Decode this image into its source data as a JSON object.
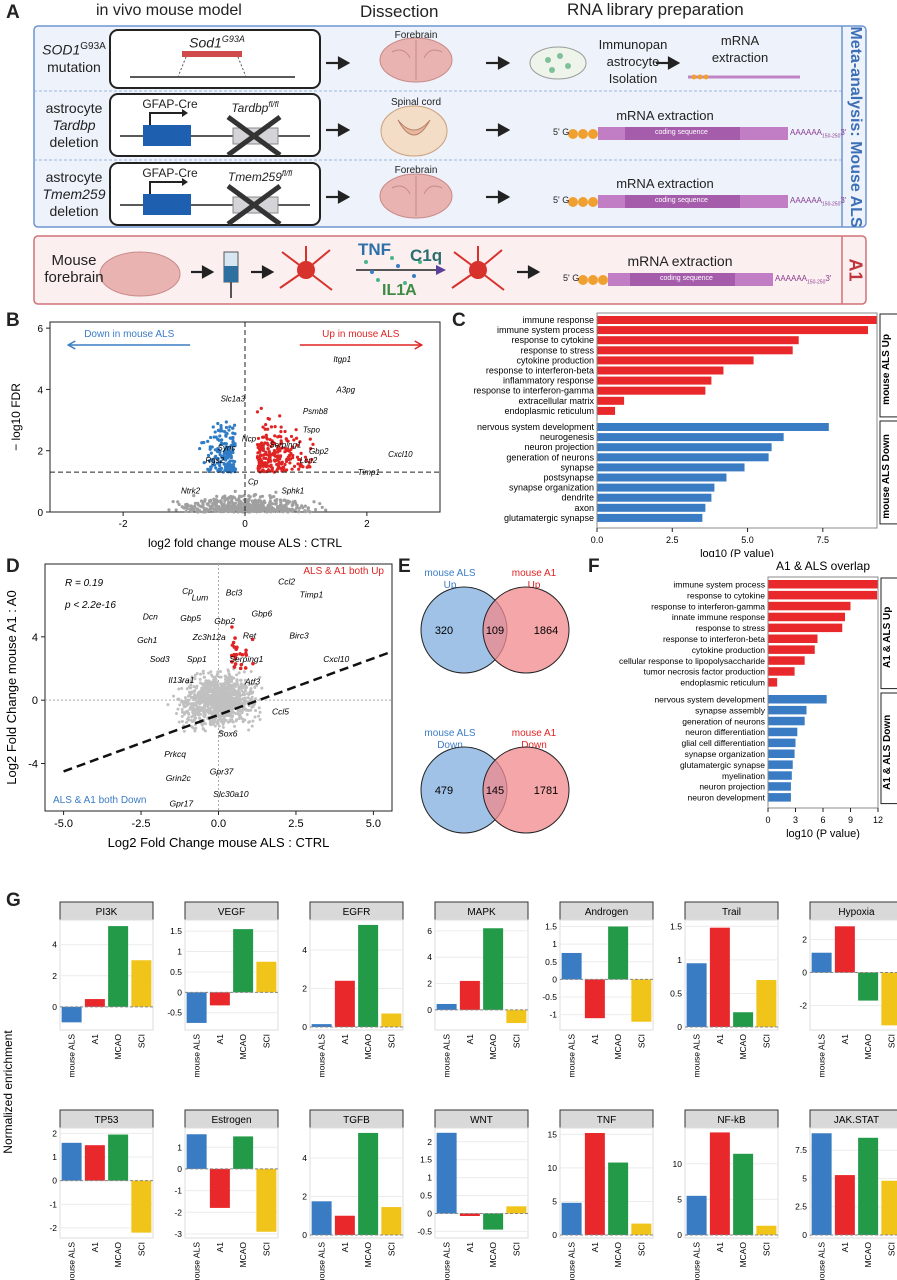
{
  "panelA": {
    "label": "A",
    "col_headers": [
      "in vivo mouse model",
      "Dissection",
      "RNA library preparation"
    ],
    "side_label_als": "Meta-analysis: Mouse ALS",
    "side_label_a1": "A1",
    "rows": [
      {
        "model": [
          "SOD1",
          "G93A",
          "mutation"
        ],
        "gene": "Sod1",
        "gene_sup": "G93A",
        "tissue": "Forebrain",
        "prep": [
          "Immunopan",
          "astrocyte",
          "Isolation"
        ],
        "prep2": [
          "mRNA",
          "extraction"
        ]
      },
      {
        "model": [
          "astrocyte",
          "Tardbp",
          "deletion"
        ],
        "cre": "GFAP-Cre",
        "gene": "Tardbp",
        "gene_sup": "fl/fl",
        "tissue": "Spinal cord",
        "prep2": [
          "mRNA extraction"
        ]
      },
      {
        "model": [
          "astrocyte",
          "Tmem259",
          "deletion"
        ],
        "cre": "GFAP-Cre",
        "gene": "Tmem259",
        "gene_sup": "fl/fl",
        "tissue": "Forebrain",
        "prep2": [
          "mRNA extraction"
        ]
      }
    ],
    "a1_row": {
      "model": [
        "Mouse",
        "forebrain"
      ],
      "cytokines": [
        "TNF",
        "C1q",
        "IL1A"
      ],
      "prep": "mRNA extraction"
    },
    "mrna": {
      "five": "5'",
      "cap": "G",
      "p": "P",
      "cds": "coding sequence",
      "polyA": "AAAAAA",
      "polyA_sub": "150-250",
      "three": "3'"
    }
  },
  "chart_data": [
    {
      "panel": "B",
      "type": "scatter",
      "annot_left": "Down in mouse ALS",
      "annot_right": "Up in mouse ALS",
      "xlabel": "log2 fold change mouse ALS : CTRL",
      "ylabel": "− log10 FDR",
      "xlim": [
        -3.2,
        3.2
      ],
      "ylim": [
        0,
        6.2
      ],
      "xticks": [
        "-2",
        "0",
        "2"
      ],
      "yticks": [
        "0",
        "2",
        "4",
        "6"
      ],
      "fdr_threshold": 1.3,
      "labels": [
        {
          "text": "Slc1a3",
          "x": -0.45,
          "y": 3.6
        },
        {
          "text": "Itgp1",
          "x": 1.4,
          "y": 4.9
        },
        {
          "text": "Psmb8",
          "x": 0.9,
          "y": 3.2
        },
        {
          "text": "A3pg",
          "x": 1.45,
          "y": 3.9
        },
        {
          "text": "Tspo",
          "x": 0.9,
          "y": 2.6
        },
        {
          "text": "Cxcl10",
          "x": 2.3,
          "y": 1.8
        },
        {
          "text": "Sync",
          "x": -0.5,
          "y": 2.0
        },
        {
          "text": "Gbp2",
          "x": 1.0,
          "y": 1.9
        },
        {
          "text": "Ncp",
          "x": -0.1,
          "y": 2.3
        },
        {
          "text": "Serping1",
          "x": 0.35,
          "y": 2.1
        },
        {
          "text": "Lcn2",
          "x": 0.85,
          "y": 1.6
        },
        {
          "text": "Timp1",
          "x": 1.8,
          "y": 1.2
        },
        {
          "text": "Rgs2",
          "x": -0.7,
          "y": 1.6
        },
        {
          "text": "Cp",
          "x": 0.0,
          "y": 0.9
        },
        {
          "text": "Sphk1",
          "x": 0.55,
          "y": 0.6
        },
        {
          "text": "Ntrk2",
          "x": -1.1,
          "y": 0.6
        }
      ]
    },
    {
      "panel": "C",
      "type": "bar",
      "xlabel": "log10 (P value)",
      "xticks": [
        "0.0",
        "2.5",
        "5.0",
        "7.5"
      ],
      "xlim": [
        0,
        9.3
      ],
      "groups": [
        {
          "name": "mouse ALS Up",
          "color": "#e8282b",
          "categories": [
            "immune response",
            "immune system process",
            "response to cytokine",
            "response to stress",
            "cytokine production",
            "response to interferon-beta",
            "inflammatory response",
            "response to interferon-gamma",
            "extracellular matrix",
            "endoplasmic reticulum"
          ],
          "values": [
            9.3,
            9.0,
            6.7,
            6.5,
            5.2,
            4.2,
            3.8,
            3.6,
            0.9,
            0.6
          ]
        },
        {
          "name": "mouse ALS Down",
          "color": "#3a7cc4",
          "categories": [
            "nervous system development",
            "neurogenesis",
            "neuron projection",
            "generation of neurons",
            "synapse",
            "postsynapse",
            "synapse organization",
            "dendrite",
            "axon",
            "glutamatergic synapse"
          ],
          "values": [
            7.7,
            6.2,
            5.8,
            5.7,
            4.9,
            4.3,
            3.9,
            3.8,
            3.6,
            3.5
          ]
        }
      ]
    },
    {
      "panel": "D",
      "type": "scatter",
      "xlabel": "Log2 Fold Change mouse ALS : CTRL",
      "ylabel": "Log2 Fold Change mouse A1 : A0",
      "xlim": [
        -5.6,
        5.6
      ],
      "ylim": [
        -7,
        8.6
      ],
      "xticks": [
        "-5.0",
        "-2.5",
        "0.0",
        "2.5",
        "5.0"
      ],
      "yticks": [
        "-4",
        "0",
        "4"
      ],
      "stats": [
        "R = 0.19",
        "p < 2.2e-16"
      ],
      "annot_up": "ALS & A1 both Up",
      "annot_down": "ALS & A1 both Down",
      "regression": {
        "x0": -5.0,
        "y0": -4.5,
        "x1": 5.5,
        "y1": 3.0
      },
      "labels": [
        {
          "text": "Cp",
          "x": -1.0,
          "y": 6.7
        },
        {
          "text": "Lum",
          "x": -0.6,
          "y": 6.3
        },
        {
          "text": "Bcl3",
          "x": 0.5,
          "y": 6.6
        },
        {
          "text": "Ccl2",
          "x": 2.2,
          "y": 7.3
        },
        {
          "text": "Timp1",
          "x": 3.0,
          "y": 6.5
        },
        {
          "text": "Dcn",
          "x": -2.2,
          "y": 5.1
        },
        {
          "text": "Gbp5",
          "x": -0.9,
          "y": 5.0
        },
        {
          "text": "Gbp2",
          "x": 0.2,
          "y": 4.8
        },
        {
          "text": "Gbp6",
          "x": 1.4,
          "y": 5.3
        },
        {
          "text": "Gch1",
          "x": -2.3,
          "y": 3.6
        },
        {
          "text": "Zc3h12a",
          "x": -0.3,
          "y": 3.8
        },
        {
          "text": "Ret",
          "x": 1.0,
          "y": 3.9
        },
        {
          "text": "Birc3",
          "x": 2.6,
          "y": 3.9
        },
        {
          "text": "Sod3",
          "x": -1.9,
          "y": 2.4
        },
        {
          "text": "Spp1",
          "x": -0.7,
          "y": 2.4
        },
        {
          "text": "Serping1",
          "x": 0.9,
          "y": 2.4
        },
        {
          "text": "Cxcl10",
          "x": 3.8,
          "y": 2.4
        },
        {
          "text": "Il13ra1",
          "x": -1.2,
          "y": 1.1
        },
        {
          "text": "Atf3",
          "x": 1.1,
          "y": 1.0
        },
        {
          "text": "Ccl5",
          "x": 2.0,
          "y": -0.9
        },
        {
          "text": "Sox6",
          "x": 0.3,
          "y": -2.3
        },
        {
          "text": "Prkcq",
          "x": -1.4,
          "y": -3.6
        },
        {
          "text": "Gpr37",
          "x": 0.1,
          "y": -4.7
        },
        {
          "text": "Grin2c",
          "x": -1.3,
          "y": -5.1
        },
        {
          "text": "Slc30a10",
          "x": 0.4,
          "y": -6.1
        },
        {
          "text": "Gpr17",
          "x": -1.2,
          "y": -6.7
        }
      ]
    },
    {
      "panel": "E",
      "type": "venn",
      "diagrams": [
        {
          "left_name": [
            "mouse ALS",
            "Up"
          ],
          "right_name": [
            "mouse A1",
            "Up"
          ],
          "left_only": 320,
          "overlap": 109,
          "right_only": 1864
        },
        {
          "left_name": [
            "mouse ALS",
            "Down"
          ],
          "right_name": [
            "mouse A1",
            "Down"
          ],
          "left_only": 479,
          "overlap": 145,
          "right_only": 1781
        }
      ]
    },
    {
      "panel": "F",
      "type": "bar",
      "title": "A1 & ALS overlap",
      "xlabel": "log10 (P value)",
      "xticks": [
        "0",
        "3",
        "6",
        "9",
        "12"
      ],
      "xlim": [
        0,
        12
      ],
      "groups": [
        {
          "name": "A1 & ALS Up",
          "color": "#e8282b",
          "categories": [
            "immune system process",
            "response to cytokine",
            "response to interferon-gamma",
            "innate immune response",
            "response to stress",
            "response to interferon-beta",
            "cytokine production",
            "cellular response to lipopolysaccharide",
            "tumor necrosis factor production",
            "endoplasmic reticulum"
          ],
          "values": [
            12.0,
            11.9,
            9.0,
            8.4,
            8.1,
            5.4,
            5.1,
            4.0,
            2.9,
            1.0
          ]
        },
        {
          "name": "A1 & ALS Down",
          "color": "#3a7cc4",
          "categories": [
            "nervous system development",
            "synapse assembly",
            "generation of neurons",
            "neuron differentiation",
            "glial cell differentiation",
            "synapse organization",
            "glutamatergic synapse",
            "myelination",
            "neuron projection",
            "neuron development"
          ],
          "values": [
            6.4,
            4.2,
            4.0,
            3.2,
            3.0,
            2.9,
            2.7,
            2.6,
            2.5,
            2.5
          ]
        }
      ]
    },
    {
      "panel": "G",
      "type": "bar",
      "ylabel": "Normalized enrichment",
      "categories": [
        "mouse ALS",
        "A1",
        "MCAO",
        "SCI"
      ],
      "colors": [
        "#3a7cc4",
        "#e8282b",
        "#239a47",
        "#f0c419"
      ],
      "facets": [
        {
          "name": "PI3K",
          "values": [
            -1.0,
            0.5,
            5.2,
            3.0
          ],
          "ylim": [
            -1.3,
            5.4
          ],
          "yticks": [
            0,
            2,
            4
          ]
        },
        {
          "name": "VEGF",
          "values": [
            -0.75,
            -0.32,
            1.55,
            0.75
          ],
          "ylim": [
            -0.85,
            1.7
          ],
          "yticks": [
            -0.5,
            0.0,
            0.5,
            1.0,
            1.5
          ]
        },
        {
          "name": "EGFR",
          "values": [
            0.15,
            2.4,
            5.3,
            0.7
          ],
          "ylim": [
            0,
            5.4
          ],
          "yticks": [
            0,
            2,
            4
          ]
        },
        {
          "name": "MAPK",
          "values": [
            0.45,
            2.2,
            6.2,
            -1.0
          ],
          "ylim": [
            -1.3,
            6.6
          ],
          "yticks": [
            0,
            2,
            4,
            6
          ]
        },
        {
          "name": "Androgen",
          "values": [
            0.75,
            -1.1,
            1.5,
            -1.2
          ],
          "ylim": [
            -1.35,
            1.6
          ],
          "yticks": [
            -1.0,
            -0.5,
            0.0,
            0.5,
            1.0,
            1.5
          ]
        },
        {
          "name": "Trail",
          "values": [
            0.95,
            1.48,
            0.22,
            0.7
          ],
          "ylim": [
            0,
            1.55
          ],
          "yticks": [
            0.0,
            0.5,
            1.0,
            1.5
          ]
        },
        {
          "name": "Hypoxia",
          "values": [
            1.2,
            2.8,
            -1.7,
            -3.2
          ],
          "ylim": [
            -3.3,
            3.0
          ],
          "yticks": [
            -2,
            0,
            2
          ]
        },
        {
          "name": "TP53",
          "values": [
            1.6,
            1.5,
            1.95,
            -2.2
          ],
          "ylim": [
            -2.3,
            2.1
          ],
          "yticks": [
            -2,
            -1,
            0,
            1,
            2
          ]
        },
        {
          "name": "Estrogen",
          "values": [
            1.6,
            -1.8,
            1.5,
            -2.9
          ],
          "ylim": [
            -3.05,
            1.75
          ],
          "yticks": [
            -3,
            -2,
            -1,
            0,
            1
          ]
        },
        {
          "name": "TGFB",
          "values": [
            1.75,
            1.0,
            5.3,
            1.45
          ],
          "ylim": [
            0,
            5.4
          ],
          "yticks": [
            0,
            2,
            4
          ]
        },
        {
          "name": "WNT",
          "values": [
            2.25,
            -0.07,
            -0.45,
            0.2
          ],
          "ylim": [
            -0.6,
            2.3
          ],
          "yticks": [
            -0.5,
            0.0,
            0.5,
            1.0,
            1.5,
            2.0
          ]
        },
        {
          "name": "TNF",
          "values": [
            4.8,
            15.2,
            10.8,
            1.7
          ],
          "ylim": [
            0,
            15.5
          ],
          "yticks": [
            0,
            5,
            10,
            15
          ]
        },
        {
          "name": "NF-kB",
          "values": [
            5.5,
            14.4,
            11.4,
            1.3
          ],
          "ylim": [
            0,
            14.6
          ],
          "yticks": [
            0,
            5,
            10
          ]
        },
        {
          "name": "JAK.STAT",
          "values": [
            9.0,
            5.3,
            8.6,
            4.8
          ],
          "ylim": [
            0,
            9.2
          ],
          "yticks": [
            0.0,
            2.5,
            5.0,
            7.5
          ]
        }
      ]
    }
  ],
  "panel_letters": [
    "B",
    "C",
    "D",
    "E",
    "F",
    "G"
  ]
}
